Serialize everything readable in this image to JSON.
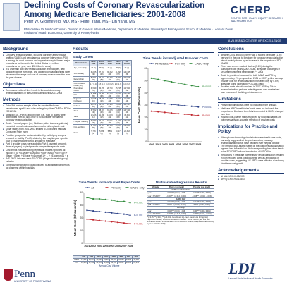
{
  "header": {
    "title": "Declining Costs of Coronary Revascularization Among Medicare Beneficiaries: 2001-2008",
    "authors": "Peter W. Groeneveld, MD, MS · Feifei Yang, MS · Lin Yang, MS",
    "affiliation": "Philadelphia VA Medical Center · Division of General Internal Medicine, Department of Medicine, University of Pennsylvania School of Medicine · Leonard Davis Institute of Health Economics, University of Pennsylvania",
    "cherp_name": "CHERP",
    "cherp_subtitle": "CENTER FOR HEALTH EQUITY RESEARCH AND PROMOTION",
    "bar_text": "A VA HSR&D CENTER OF EXCELLENCE"
  },
  "background": {
    "title": "Background",
    "bullets": [
      "Coronary revascularization, including coronary artery bypass grafting (CABG) and percutaneous coronary intervention (PCI), is among the most common and expensive hospital based major procedures performed in the United States (>1 million procedures per year, over $30 billion in costs)",
      "It is uncertain how new revascularization technologies, new clinical evidence from trials, and updated clinical guidelines have influenced the usage and cost of coronary revascularization over the past decade"
    ]
  },
  "objectives": {
    "title": "Objectives",
    "bullets": [
      "To measure national time trends in the cost of coronary revascularizations in the United States during 2001-2008"
    ]
  },
  "methods": {
    "title": "Methods",
    "bullets": [
      "Data: 5% random sample of fee-for-service Medicare beneficiaries age 65 and older undergoing either CABG or PCI in 2001-2008",
      "At facility (i.e., Part A) and provider (i.e., Part B) claims were aggregated from 30 days prior to 90 days after the date of coronary revascularization",
      "Costs: From all payers (i.e., Medicare, other insurers, patients) extracted from all claims and summed to yield episode cost",
      "Dollar values from 2001-2007 inflated to 2008 using national Consumer Price Index",
      "Provider perspective costs calculated by multiplying charges reported on facility (Part A) claims by the hospital-year specific cost to charge ratio reported annually to Medicare",
      "Part B provider costs were added to Part A payment amounts (from all payers) to yield provider-perspective episode costs",
      "Cost trends evaluated using regression models specified as: ln(cost) = β0 + β1year + β2AGE65 + β3FEMALE + β4YEAR + β5age + β6sex + β7race + γ1comorb1 + ... + γ31comorb31 + ε",
      "\"MS-DRG\" indicates each 2010 DRG (diagnosis related group) indicator",
      "Generalized estimating equations used to adjust standard errors for clustering within hospitals"
    ]
  },
  "results": {
    "title": "Results"
  },
  "study_cohort": {
    "title": "Study Cohort",
    "columns": [
      "Characteristic",
      "2001-2002",
      "2003-2004",
      "2005-2006",
      "2007-2008",
      "Full Cohort"
    ],
    "rows": [
      {
        "label": "Age, mean (SD)",
        "cells": [
          "75 (6)",
          "75 (6)",
          "76 (6)",
          "76 (6)",
          "75 (6)"
        ]
      },
      {
        "label": "Sex (female)",
        "cells": [
          "36,025 (38)",
          "37,161 (40)",
          "36,362 (40)",
          "31,097 (37)",
          "140,745 (39)"
        ]
      },
      {
        "label": "Race (white)",
        "cells": [
          "84,941 (90)",
          "83,807 (89)",
          "82,300 (90)",
          "75,960 (90)",
          "327,008 (90)"
        ]
      },
      {
        "label": "Comorbidities, mean (SD)",
        "cells": [
          "1.7 (1.1)",
          "1.8 (1.1)",
          "1.9 (1.2)",
          "2.0 (1.3)",
          "1.8 (1.2)"
        ]
      },
      {
        "label": "Procedures: CABG",
        "cells": [
          "32,999 (35)",
          "30,455 (32)",
          "28,750 (31)",
          "25,725 (30)",
          "117,929 (32)"
        ]
      },
      {
        "label": "PCI",
        "cells": [
          "61,535 (65)",
          "64,050 (68)",
          "63,260 (69)",
          "59,444 (70)",
          "248,289 (68)"
        ]
      },
      {
        "label": "Regional: Northeast",
        "cells": [
          "18,305 (19)",
          "18,698 (20)",
          "17,815 (19)",
          "16,220 (19)",
          "71,038 (19)"
        ]
      },
      {
        "label": "Midwest",
        "cells": [
          "26,371 (28)",
          "26,414 (28)",
          "25,911 (28)",
          "23,851 (28)",
          "102,547 (28)"
        ]
      },
      {
        "label": "South",
        "cells": [
          "37,652 (40)",
          "38,007 (40)",
          "37,215 (41)",
          "34,455 (41)",
          "147,329 (40)"
        ]
      },
      {
        "label": "West",
        "cells": [
          "12,206 (13)",
          "11,386 (12)",
          "11,069 (12)",
          "10,643 (13)",
          "45,304 (12)"
        ]
      },
      {
        "label": "Hospital: Teaching",
        "cells": [
          "33,187 (35)",
          "34,244 (36)",
          "33,671 (37)",
          "31,247 (37)",
          "132,349 (36)"
        ]
      },
      {
        "label": "Non-teaching",
        "cells": [
          "61,347 (65)",
          "60,261 (64)",
          "58,339 (63)",
          "53,922 (63)",
          "233,869 (64)"
        ]
      },
      {
        "label": "Rural",
        "cells": [
          "5,796 (6)",
          "5,989 (6)",
          "5,561 (6)",
          "5,017 (6)",
          "22,363 (6)"
        ]
      }
    ]
  },
  "unadjusted_chart": {
    "chart_data": {
      "type": "line",
      "title": "Time Trends in Unadjusted Provider Costs",
      "xlabel": "",
      "ylabel": "Mean Cost ($thousands)",
      "x": [
        "2001",
        "2002",
        "2003",
        "2004",
        "2005",
        "2006",
        "2007",
        "2008"
      ],
      "ylim": [
        0,
        60
      ],
      "yticks": [
        0,
        10,
        20,
        30,
        40,
        50,
        60
      ],
      "legend": "top",
      "series": [
        {
          "name": "All Revasc",
          "values": [
            32,
            31.5,
            31,
            30.5,
            30,
            29.5,
            29,
            28.5
          ],
          "pvalue": "P<0.001"
        },
        {
          "name": "PCI only",
          "values": [
            25,
            24.5,
            24,
            23.5,
            23,
            22.5,
            22,
            21.5
          ],
          "pvalue": "P=0.63"
        },
        {
          "name": "CABG only",
          "values": [
            52,
            51,
            50,
            49,
            48,
            47,
            46,
            45
          ],
          "pvalue": "P<0.001"
        }
      ],
      "colors": [
        "#2a3f86",
        "#c0262d",
        "#2f8a3a"
      ]
    }
  },
  "payer_chart": {
    "chart_data": {
      "type": "line",
      "title": "Time Trends in Unadjusted Payer Costs",
      "xlabel": "Annual Cost Volume",
      "ylabel": "Mean Cost ($thousands)",
      "x": [
        "2001",
        "2002",
        "2003",
        "2004",
        "2005",
        "2006",
        "2007",
        "2008"
      ],
      "ylim": [
        0,
        40
      ],
      "yticks": [
        0,
        10,
        20,
        30,
        40
      ],
      "legend": "top",
      "series": [
        {
          "name": "All",
          "values": [
            26,
            25.5,
            25,
            24.5,
            24,
            23.5,
            23,
            22
          ],
          "pvalue": "P<0.001"
        },
        {
          "name": "PCI only",
          "values": [
            19,
            18.5,
            18,
            17.5,
            17,
            16.5,
            16,
            15.5
          ],
          "pvalue": "P<0.001"
        },
        {
          "name": "CABG only",
          "values": [
            36,
            35,
            35,
            34.5,
            34,
            33,
            33,
            32
          ],
          "pvalue": "P<0.001"
        }
      ],
      "colors": [
        "#2a3f86",
        "#c0262d",
        "#2f8a3a"
      ]
    }
  },
  "volume_table": {
    "columns": [
      "",
      "2001",
      "2002",
      "2003",
      "2004",
      "2005",
      "2006",
      "2007",
      "2008"
    ],
    "rows": [
      {
        "label": "CABG",
        "cells": [
          "17,482",
          "15,517",
          "15,468",
          "14,987",
          "14,481",
          "14,269",
          "13,202",
          "12,523"
        ]
      },
      {
        "label": "PCI",
        "cells": [
          "29,980",
          "31,555",
          "32,101",
          "31,949",
          "32,209",
          "31,051",
          "30,165",
          "29,279"
        ]
      }
    ]
  },
  "multivariable": {
    "title": "Multivariable Regression Results",
    "columns": [
      "Variable",
      "Payer cost model",
      "Provider cost model"
    ],
    "groups": [
      {
        "label": "All Revascularizations",
        "rows": [
          {
            "label": "year",
            "cells": [
              "0.016*** (0.014, 0.019)",
              "0.010*** (0.007, 0.012)"
            ]
          },
          {
            "label": "year x MSDRG*",
            "cells": [
              "-0.009*** (-0.014, -0.004)",
              "-0.008*** (-0.014, -0.003)"
            ]
          }
        ]
      },
      {
        "label": "CABG Only",
        "rows": [
          {
            "label": "year",
            "cells": [
              "0.020*** (0.016, 0.024)",
              "0.012*** (0.007, 0.016)"
            ]
          },
          {
            "label": "year x MSDRG*",
            "cells": [
              "-0.008** (-0.014, -0.001)",
              "-0.006 (-0.013, 0.001)"
            ]
          }
        ]
      },
      {
        "label": "PCI Only",
        "rows": [
          {
            "label": "year",
            "cells": [
              "0.013*** (0.010, 0.016)",
              "0.008*** (0.005, 0.011)"
            ]
          },
          {
            "label": "year x MSDRG*",
            "cells": [
              "-0.008*** (-0.013, -0.002)",
              "-0.008** (-0.014, -0.001)"
            ]
          }
        ]
      }
    ],
    "notes": "*p<0.05; **p<0.01; ***p<0.001 · Results are log-linear coefficients for log(cost) regression models, with 95% confidence intervals · *Joint effect of year and year interacted with the implementation of the Medicare Severity Diagnosis-Related Group system (October 2007)"
  },
  "conclusions": {
    "title": "Conclusions",
    "bullets": [
      "Between 2001 and 2007 there was a modest decrease (1.4% per year) in the cost to Medicare for coronary revascularization, almost entirely driven by an increase in the proportion of PCI (CABG)",
      "There was a more marked decline (5.6%) during the subsequent two years (2007-2008), likely due to changes in DRG reimbursement beginning in FY 2008",
      "Costs to providers increased for both CABG and PCI by approximately 2% per year from 2001 to 2007, yet the average provider cost for revascularization increased only by 0.5%, likely due to the increasing PCI:CABG ratio",
      "Provider costs abruptly declined in 2007-2008 by 3% for revascularization, perhaps reflecting more cost constrained care in an era of declining reimbursement"
    ]
  },
  "limitations": {
    "title": "Limitations",
    "bullets": [
      "Prescription drug costs were not included in the analysis",
      "Medicare HMO beneficiaries' costs were not included; the proportion of Medicare beneficiaries enrolled in HMOs changed over time",
      "Hospital cost-charge ratios multiplied by hospital charges are not necessarily an accurate reflection of provider costs"
    ]
  },
  "implications": {
    "title": "Implications for Practice and Policy",
    "bullets": [
      "Although new technology tends to increase health care costs, our study suggests that despite innovation, coronary revascularization costs have declined over the past decade",
      "The effect of drug-eluting stents on the cost of revascularization appears less influential on Medicare spending than other trends in the PCI:CABG ratio or introduction of MS-DRGs",
      "Reductions in Medicare payments for revascularization resulted in both reduced costs to Medicare as well as a reduction in provider costs, suggesting MS-DRGs were effective at reducing short-term cost growth"
    ]
  },
  "acknowledgements": {
    "title": "Acknowledgements",
    "bullets": [
      "NHLBI: 1R01HL086919",
      "AHRQ: 1R01HS018403"
    ]
  },
  "logos": {
    "penn_name": "Penn",
    "penn_sub": "UNIVERSITY OF PENNSYLVANIA",
    "ldi_name": "LDI",
    "ldi_sub": "Leonard Davis Institute of Health Economics"
  }
}
